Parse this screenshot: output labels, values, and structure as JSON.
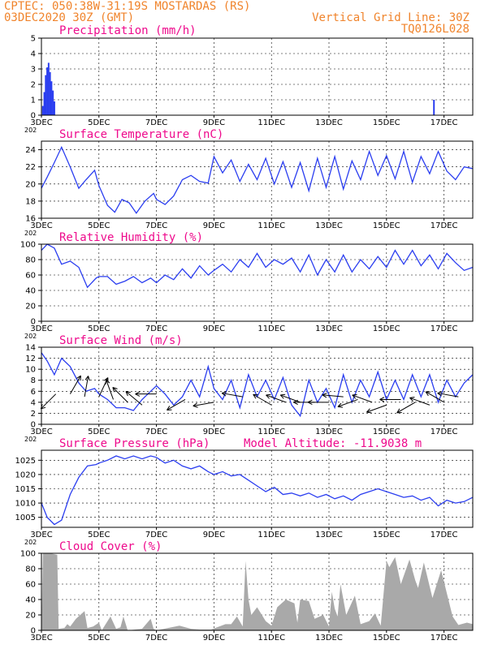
{
  "header": {
    "line1_left": "CPTEC:   050:38W-31:19S   MOSTARDAS (RS)",
    "line2_left": "03DEC2020 30Z (GMT)",
    "line1_right": "Vertical Grid Line: 30Z",
    "line2_right": "TQ0126L028"
  },
  "x_axis": {
    "ticks": [
      "3DEC",
      "5DEC",
      "7DEC",
      "9DEC",
      "11DEC",
      "13DEC",
      "15DEC",
      "17DEC"
    ],
    "tick_days": [
      3,
      5,
      7,
      9,
      11,
      13,
      15,
      17
    ],
    "range_days": [
      3,
      18
    ],
    "stub_label": "202"
  },
  "colors": {
    "series": "#2b3ef0",
    "title": "#ee0a8c",
    "header": "#f0842c",
    "bars": "#a9a9a9"
  },
  "chart_data": [
    {
      "id": "precip",
      "type": "bar",
      "title": "Precipitation (mm/h)",
      "ylim": [
        0,
        5
      ],
      "yticks": [
        "0",
        "1",
        "2",
        "3",
        "4",
        "5"
      ],
      "x": [
        3.05,
        3.1,
        3.15,
        3.2,
        3.25,
        3.3,
        3.35,
        3.4,
        3.45,
        16.65
      ],
      "values": [
        0.6,
        1.5,
        2.6,
        3.1,
        3.4,
        2.8,
        2.2,
        1.6,
        0.9,
        1.0
      ]
    },
    {
      "id": "temp",
      "type": "line",
      "title": "Surface Temperature (nC)",
      "ylim": [
        16,
        25
      ],
      "yticks": [
        "16",
        "18",
        "20",
        "22",
        "24"
      ],
      "ytick_values": [
        16,
        18,
        20,
        22,
        24
      ],
      "x": [
        3.0,
        3.2,
        3.45,
        3.7,
        4.0,
        4.3,
        4.55,
        4.85,
        5.0,
        5.3,
        5.55,
        5.8,
        6.05,
        6.3,
        6.6,
        6.9,
        7.0,
        7.3,
        7.6,
        7.9,
        8.2,
        8.5,
        8.8,
        9.0,
        9.3,
        9.6,
        9.9,
        10.2,
        10.5,
        10.8,
        11.1,
        11.4,
        11.7,
        12.0,
        12.3,
        12.6,
        12.9,
        13.2,
        13.5,
        13.8,
        14.1,
        14.4,
        14.7,
        15.0,
        15.3,
        15.6,
        15.9,
        16.2,
        16.5,
        16.8,
        17.1,
        17.4,
        17.7,
        18.0
      ],
      "values": [
        19.5,
        20.8,
        22.5,
        24.3,
        22.0,
        19.5,
        20.5,
        21.6,
        19.8,
        17.5,
        16.7,
        18.2,
        17.8,
        16.6,
        18.0,
        18.9,
        18.2,
        17.6,
        18.6,
        20.5,
        21.0,
        20.3,
        20.1,
        23.2,
        21.3,
        22.8,
        20.3,
        22.3,
        20.5,
        23.0,
        20.0,
        22.6,
        19.6,
        22.5,
        19.2,
        23.0,
        19.6,
        23.2,
        19.4,
        22.7,
        20.5,
        23.8,
        21.0,
        23.3,
        20.6,
        23.8,
        20.2,
        23.2,
        21.2,
        23.8,
        21.5,
        20.5,
        22.0,
        21.8
      ]
    },
    {
      "id": "rh",
      "type": "line",
      "title": "Relative Humidity (%)",
      "ylim": [
        0,
        100
      ],
      "yticks": [
        "0",
        "20",
        "40",
        "60",
        "80",
        "100"
      ],
      "ytick_values": [
        0,
        20,
        40,
        60,
        80,
        100
      ],
      "x": [
        3.0,
        3.2,
        3.45,
        3.7,
        4.0,
        4.3,
        4.6,
        4.9,
        5.0,
        5.3,
        5.6,
        5.9,
        6.2,
        6.5,
        6.8,
        7.0,
        7.3,
        7.6,
        7.9,
        8.2,
        8.5,
        8.8,
        9.0,
        9.3,
        9.6,
        9.9,
        10.2,
        10.5,
        10.8,
        11.1,
        11.4,
        11.7,
        12.0,
        12.3,
        12.6,
        12.9,
        13.2,
        13.5,
        13.8,
        14.1,
        14.4,
        14.7,
        15.0,
        15.3,
        15.6,
        15.9,
        16.2,
        16.5,
        16.8,
        17.1,
        17.4,
        17.7,
        18.0
      ],
      "values": [
        92,
        100,
        95,
        74,
        78,
        70,
        44,
        56,
        58,
        58,
        48,
        52,
        58,
        50,
        56,
        50,
        60,
        54,
        68,
        56,
        72,
        60,
        66,
        74,
        64,
        80,
        70,
        88,
        70,
        80,
        74,
        82,
        64,
        86,
        60,
        80,
        64,
        86,
        64,
        80,
        68,
        84,
        70,
        92,
        74,
        92,
        72,
        86,
        68,
        88,
        76,
        66,
        70
      ]
    },
    {
      "id": "wind",
      "type": "line",
      "title": "Surface Wind (m/s)",
      "ylim": [
        0,
        14
      ],
      "yticks": [
        "0",
        "2",
        "4",
        "6",
        "8",
        "10",
        "12",
        "14"
      ],
      "ytick_values": [
        0,
        2,
        4,
        6,
        8,
        10,
        12,
        14
      ],
      "x": [
        3.0,
        3.2,
        3.45,
        3.7,
        4.0,
        4.3,
        4.55,
        4.85,
        5.0,
        5.3,
        5.6,
        5.9,
        6.2,
        6.5,
        6.8,
        7.0,
        7.3,
        7.6,
        7.9,
        8.2,
        8.5,
        8.8,
        9.0,
        9.3,
        9.6,
        9.9,
        10.2,
        10.5,
        10.8,
        11.1,
        11.4,
        11.7,
        12.0,
        12.3,
        12.6,
        12.9,
        13.2,
        13.5,
        13.8,
        14.1,
        14.4,
        14.7,
        15.0,
        15.3,
        15.6,
        15.9,
        16.2,
        16.5,
        16.8,
        17.1,
        17.4,
        17.7,
        18.0
      ],
      "values": [
        13.0,
        11.5,
        9.0,
        12.0,
        10.5,
        7.5,
        6.0,
        6.5,
        5.5,
        4.5,
        3.0,
        3.0,
        2.5,
        4.5,
        6.0,
        7.0,
        5.5,
        3.5,
        5.0,
        8.0,
        5.0,
        10.5,
        6.5,
        4.5,
        8.0,
        3.0,
        9.0,
        5.0,
        8.0,
        4.5,
        8.5,
        3.5,
        1.5,
        8.0,
        4.0,
        6.5,
        3.0,
        9.0,
        4.0,
        8.0,
        5.0,
        9.5,
        4.5,
        8.0,
        4.5,
        9.0,
        5.0,
        9.0,
        4.0,
        8.0,
        5.0,
        7.5,
        9.0
      ],
      "arrows": [
        {
          "day": 3.5,
          "speed": 5.5,
          "dir_deg": 135
        },
        {
          "day": 4.0,
          "speed": 5.5,
          "dir_deg": -60
        },
        {
          "day": 4.5,
          "speed": 5.0,
          "dir_deg": -80
        },
        {
          "day": 5.0,
          "speed": 5.0,
          "dir_deg": -65
        },
        {
          "day": 5.5,
          "speed": 4.5,
          "dir_deg": -110
        },
        {
          "day": 6.0,
          "speed": 4.0,
          "dir_deg": -135
        },
        {
          "day": 6.5,
          "speed": 3.5,
          "dir_deg": -140
        },
        {
          "day": 7.0,
          "speed": 5.5,
          "dir_deg": 180
        },
        {
          "day": 8.0,
          "speed": 4.5,
          "dir_deg": 150
        },
        {
          "day": 9.0,
          "speed": 4.0,
          "dir_deg": 170
        },
        {
          "day": 10.0,
          "speed": 5.0,
          "dir_deg": -170
        },
        {
          "day": 11.0,
          "speed": 3.5,
          "dir_deg": -150
        },
        {
          "day": 11.5,
          "speed": 4.0,
          "dir_deg": -160
        },
        {
          "day": 12.0,
          "speed": 4.0,
          "dir_deg": -160
        },
        {
          "day": 12.5,
          "speed": 4.0,
          "dir_deg": 180
        },
        {
          "day": 13.0,
          "speed": 4.0,
          "dir_deg": 180
        },
        {
          "day": 13.5,
          "speed": 5.0,
          "dir_deg": -175
        },
        {
          "day": 14.0,
          "speed": 4.5,
          "dir_deg": 160
        },
        {
          "day": 14.5,
          "speed": 4.0,
          "dir_deg": -160
        },
        {
          "day": 15.0,
          "speed": 3.5,
          "dir_deg": 160
        },
        {
          "day": 15.5,
          "speed": 4.5,
          "dir_deg": 180
        },
        {
          "day": 16.0,
          "speed": 4.0,
          "dir_deg": 150
        },
        {
          "day": 16.5,
          "speed": 3.5,
          "dir_deg": -160
        },
        {
          "day": 17.0,
          "speed": 4.0,
          "dir_deg": -150
        },
        {
          "day": 17.5,
          "speed": 5.0,
          "dir_deg": -170
        }
      ]
    },
    {
      "id": "pressure",
      "type": "line",
      "title": "Surface Pressure (hPa)",
      "annotation": "Model Altitude: -11.9038 m",
      "ylim": [
        1001.5,
        1028.5
      ],
      "yticks": [
        "1005",
        "1010",
        "1015",
        "1020",
        "1025"
      ],
      "ytick_values": [
        1005,
        1010,
        1015,
        1020,
        1025
      ],
      "x": [
        3.0,
        3.2,
        3.45,
        3.7,
        4.0,
        4.3,
        4.6,
        4.9,
        5.0,
        5.3,
        5.6,
        5.9,
        6.2,
        6.5,
        6.8,
        7.0,
        7.3,
        7.6,
        7.9,
        8.2,
        8.5,
        8.8,
        9.0,
        9.3,
        9.6,
        9.9,
        10.2,
        10.5,
        10.8,
        11.1,
        11.4,
        11.7,
        12.0,
        12.3,
        12.6,
        12.9,
        13.2,
        13.5,
        13.8,
        14.1,
        14.4,
        14.7,
        15.0,
        15.3,
        15.6,
        15.9,
        16.2,
        16.5,
        16.8,
        17.1,
        17.4,
        17.7,
        18.0
      ],
      "values": [
        1010,
        1005,
        1002.5,
        1004,
        1013,
        1019,
        1023,
        1023.5,
        1024,
        1025,
        1026.5,
        1025.5,
        1026.5,
        1025.5,
        1026.5,
        1026,
        1024,
        1025,
        1023,
        1022,
        1023,
        1021,
        1020,
        1021,
        1019.5,
        1020,
        1018,
        1016,
        1014,
        1015.5,
        1013,
        1013.5,
        1012.5,
        1013.5,
        1012,
        1013,
        1011.5,
        1012.5,
        1011,
        1013,
        1014,
        1015,
        1014,
        1013,
        1012,
        1012.5,
        1011,
        1012,
        1009,
        1011,
        1010,
        1010.5,
        1012
      ]
    },
    {
      "id": "cloud",
      "type": "area",
      "title": "Cloud Cover (%)",
      "ylim": [
        0,
        100
      ],
      "yticks": [
        "0",
        "20",
        "40",
        "60",
        "80",
        "100"
      ],
      "ytick_values": [
        0,
        20,
        40,
        60,
        80,
        100
      ],
      "x": [
        3.0,
        3.05,
        3.3,
        3.55,
        3.6,
        3.8,
        3.9,
        4.0,
        4.2,
        4.5,
        4.6,
        4.8,
        5.0,
        5.1,
        5.4,
        5.6,
        5.75,
        5.85,
        6.0,
        6.5,
        6.8,
        6.9,
        7.0,
        7.4,
        7.8,
        8.2,
        8.5,
        8.9,
        9.4,
        9.6,
        9.8,
        10.0,
        10.1,
        10.2,
        10.3,
        10.5,
        10.8,
        11.0,
        11.2,
        11.5,
        11.8,
        11.9,
        12.0,
        12.3,
        12.5,
        12.8,
        13.0,
        13.1,
        13.2,
        13.3,
        13.4,
        13.6,
        13.9,
        14.1,
        14.4,
        14.6,
        14.8,
        15.0,
        15.1,
        15.3,
        15.5,
        15.8,
        16.0,
        16.1,
        16.3,
        16.6,
        16.9,
        17.1,
        17.3,
        17.5,
        17.8,
        18.0
      ],
      "values": [
        0,
        100,
        100,
        98,
        2,
        3,
        8,
        5,
        15,
        25,
        3,
        5,
        10,
        0,
        18,
        2,
        4,
        18,
        0,
        2,
        15,
        2,
        0,
        3,
        6,
        2,
        1,
        1,
        8,
        8,
        18,
        5,
        90,
        40,
        20,
        30,
        12,
        6,
        30,
        40,
        35,
        10,
        40,
        38,
        15,
        20,
        5,
        50,
        28,
        18,
        60,
        20,
        45,
        8,
        12,
        22,
        6,
        90,
        82,
        95,
        60,
        92,
        65,
        55,
        88,
        42,
        78,
        48,
        18,
        7,
        10,
        8
      ]
    }
  ]
}
